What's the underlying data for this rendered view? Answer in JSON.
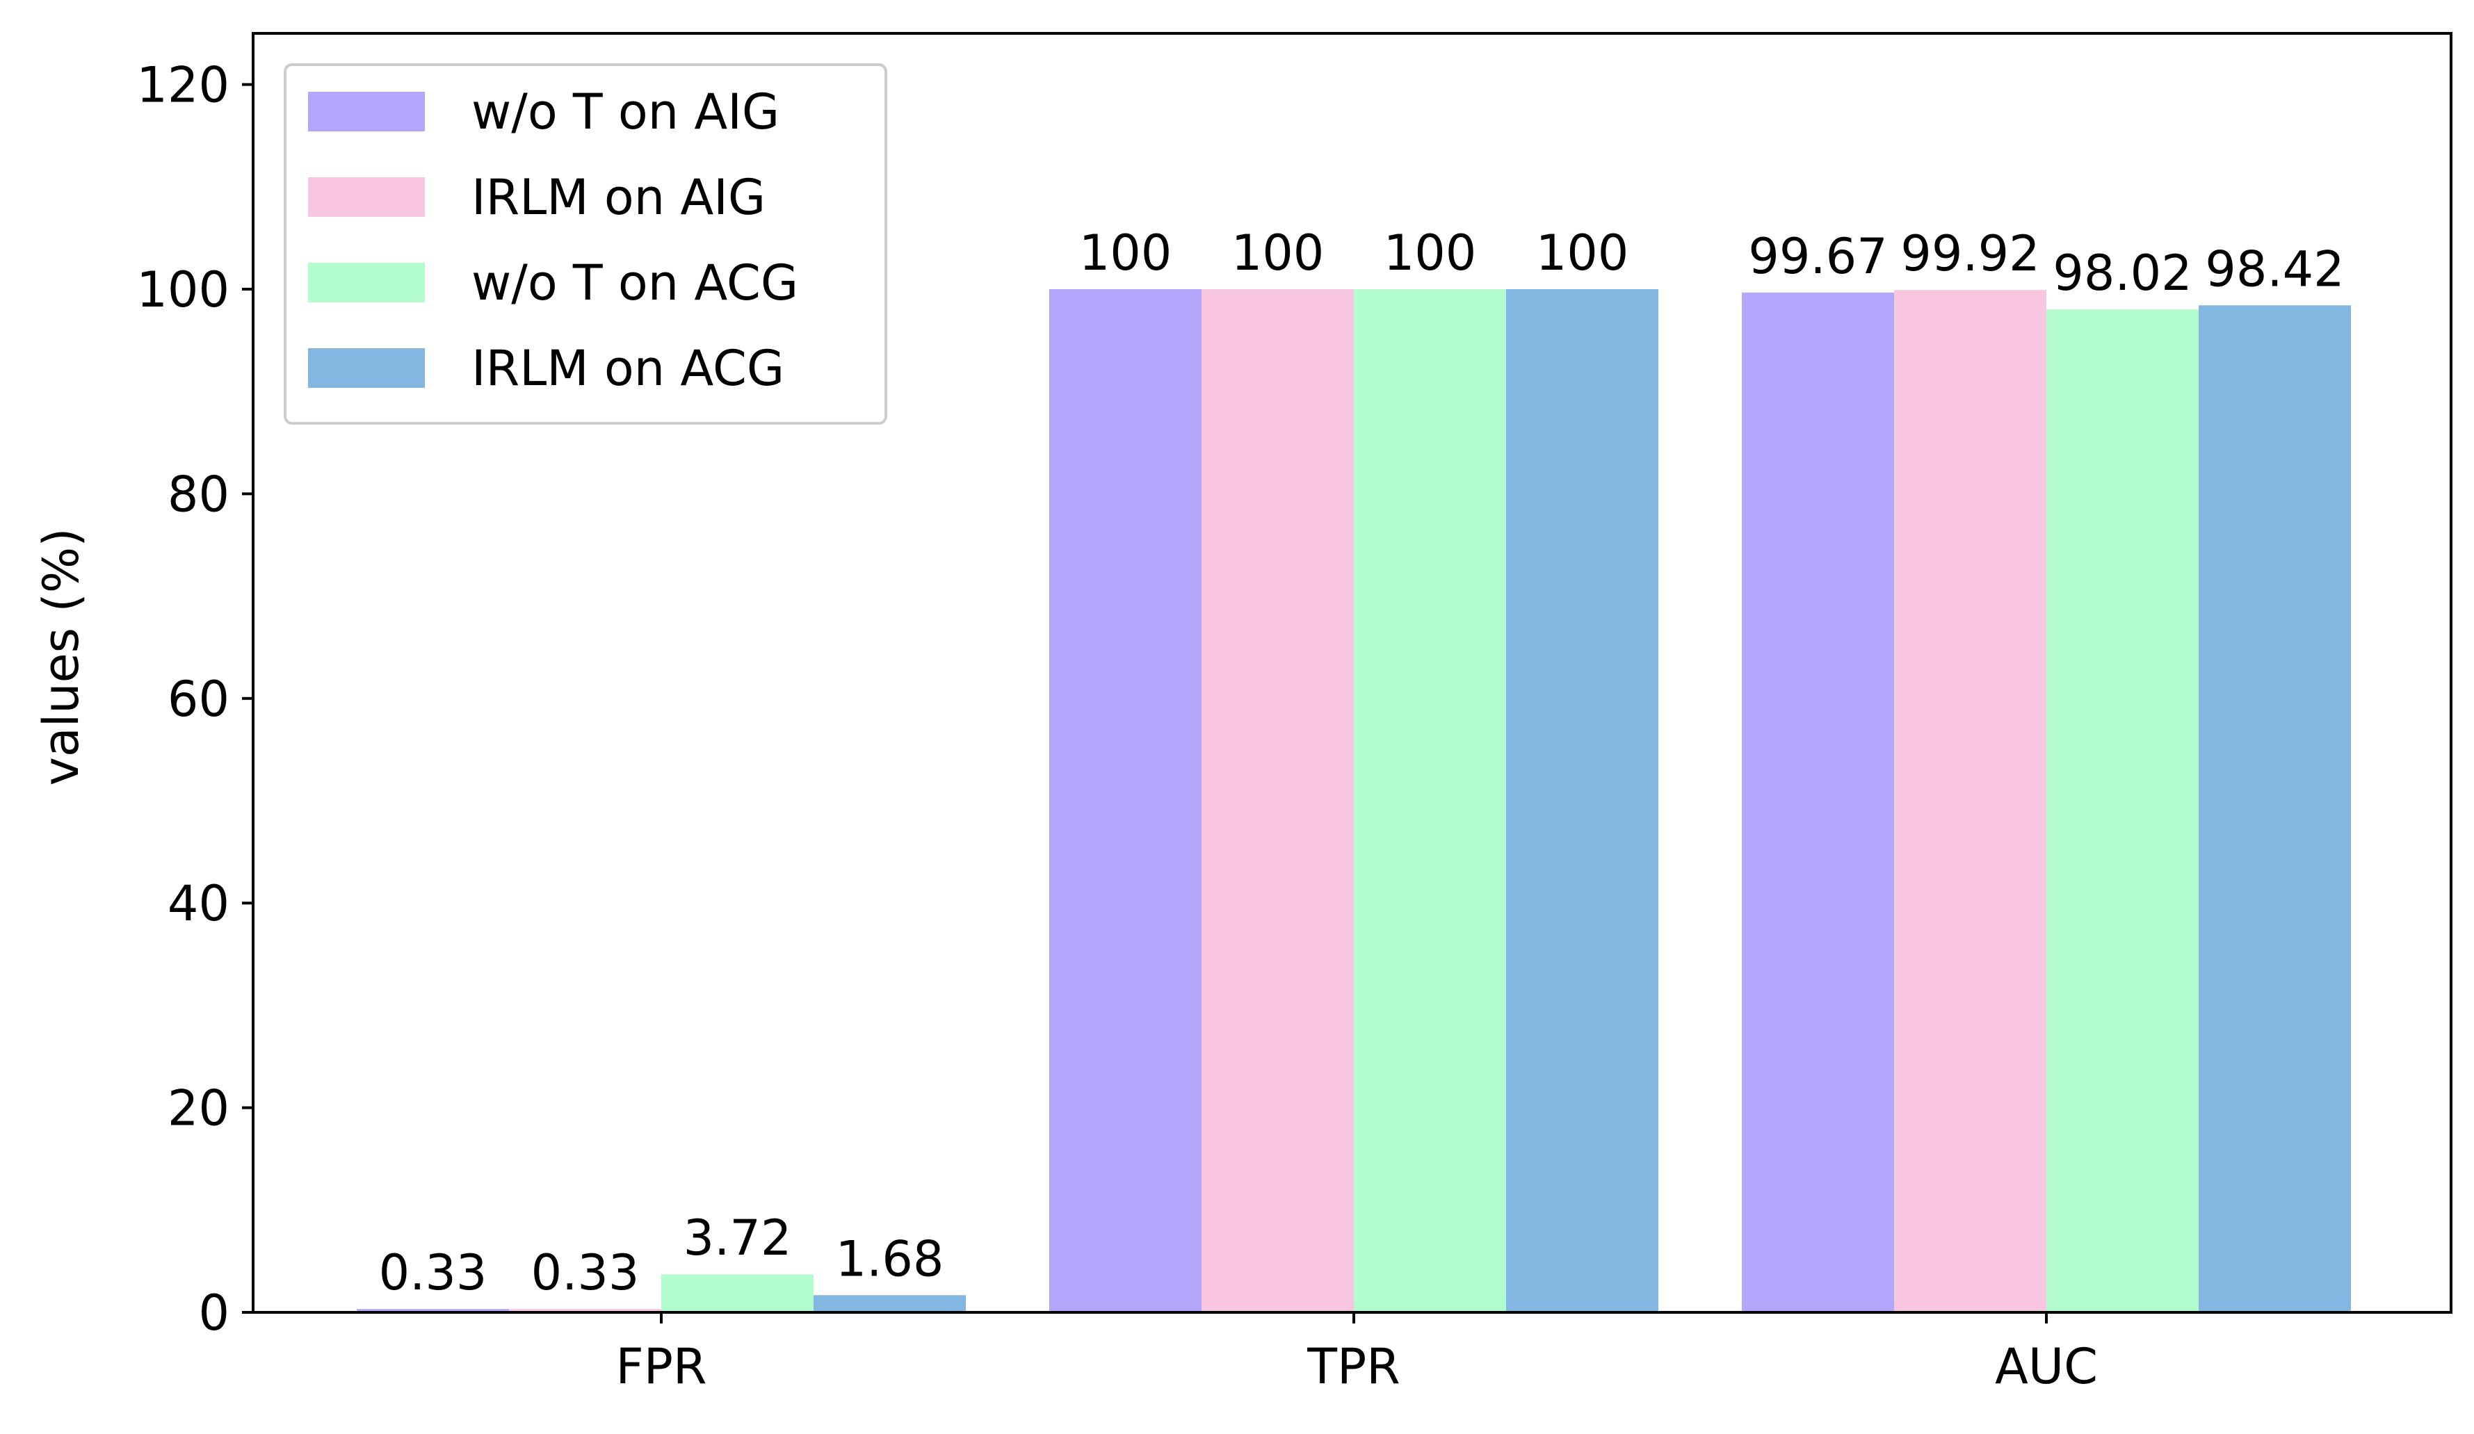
{
  "chart_data": {
    "type": "bar",
    "title": "",
    "xlabel": "",
    "ylabel": "values (%)",
    "categories": [
      "FPR",
      "TPR",
      "AUC"
    ],
    "ylim": [
      0,
      125
    ],
    "yticks": [
      0,
      20,
      40,
      60,
      80,
      100,
      120
    ],
    "grid": false,
    "legend_position": "top-left",
    "series": [
      {
        "name": "w/o T on AIG",
        "color": "#b3a6fd",
        "values": [
          0.33,
          100,
          99.67
        ],
        "labels": [
          "0.33",
          "100",
          "99.67"
        ]
      },
      {
        "name": "IRLM on AIG",
        "color": "#f8c6e1",
        "values": [
          0.33,
          100,
          99.92
        ],
        "labels": [
          "0.33",
          "100",
          "99.92"
        ]
      },
      {
        "name": "w/o T on ACG",
        "color": "#b3fccd",
        "values": [
          3.72,
          100,
          98.02
        ],
        "labels": [
          "3.72",
          "100",
          "98.02"
        ]
      },
      {
        "name": "IRLM on ACG",
        "color": "#83b6e0",
        "values": [
          1.68,
          100,
          98.42
        ],
        "labels": [
          "1.68",
          "100",
          "98.42"
        ]
      }
    ]
  }
}
